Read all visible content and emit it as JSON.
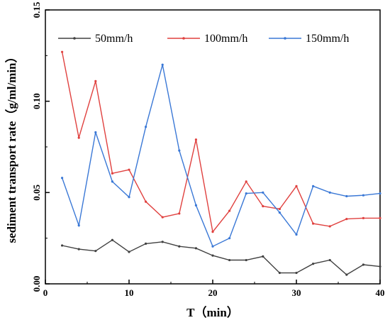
{
  "chart_data": {
    "type": "line",
    "title": "",
    "xlabel": "T（min）",
    "ylabel": "sediment transport rate（g/ml/min）",
    "xlim": [
      0,
      40
    ],
    "ylim": [
      0,
      0.15
    ],
    "xticks": [
      0,
      10,
      20,
      30,
      40
    ],
    "xtick_labels": [
      "0",
      "10",
      "20",
      "30",
      "40"
    ],
    "yticks": [
      0,
      0.05,
      0.1,
      0.15
    ],
    "ytick_labels": [
      "0.00",
      "0.05",
      "0.10",
      "0.15"
    ],
    "grid": false,
    "legend_position": "top",
    "x": [
      2,
      4,
      6,
      8,
      10,
      12,
      14,
      16,
      18,
      20,
      22,
      24,
      26,
      28,
      30,
      32,
      34,
      36,
      38,
      40
    ],
    "series": [
      {
        "name": "50mm/h",
        "color": "#404040",
        "values": [
          0.021,
          0.019,
          0.018,
          0.024,
          0.0175,
          0.022,
          0.023,
          0.0205,
          0.0195,
          0.0155,
          0.013,
          0.013,
          0.015,
          0.006,
          0.006,
          0.011,
          0.013,
          0.005,
          0.0105,
          0.0095
        ]
      },
      {
        "name": "100mm/h",
        "color": "#e0413f",
        "values": [
          0.127,
          0.08,
          0.111,
          0.0605,
          0.0625,
          0.045,
          0.0365,
          0.0385,
          0.079,
          0.0285,
          0.04,
          0.056,
          0.0425,
          0.041,
          0.0535,
          0.033,
          0.0315,
          0.0355,
          0.036,
          0.036
        ]
      },
      {
        "name": "150mm/h",
        "color": "#3a78d6",
        "values": [
          0.058,
          0.032,
          0.083,
          0.056,
          0.0475,
          0.086,
          0.12,
          0.073,
          0.043,
          0.0205,
          0.025,
          0.0495,
          0.05,
          0.039,
          0.027,
          0.0535,
          0.05,
          0.048,
          0.0485,
          0.0495
        ]
      }
    ]
  }
}
